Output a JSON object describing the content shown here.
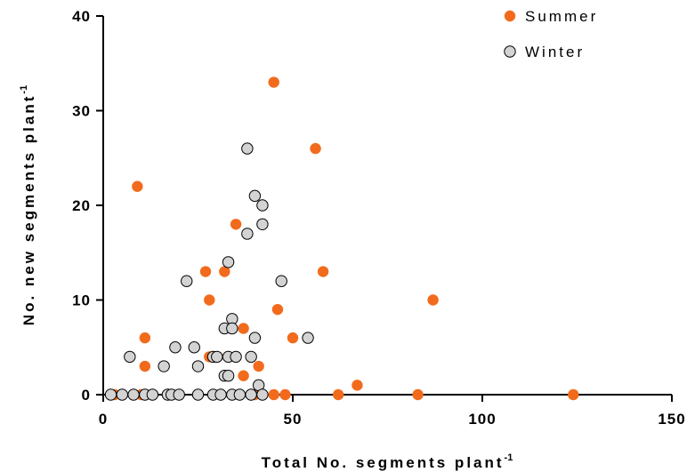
{
  "chart_data": {
    "type": "scatter",
    "xlabel": "Total No. segments plant",
    "xlabel_sup": "-1",
    "ylabel": "No. new segments plant",
    "ylabel_sup": "-1",
    "xlim": [
      0,
      150
    ],
    "ylim": [
      0,
      40
    ],
    "xticks": [
      "0",
      "50",
      "100",
      "150"
    ],
    "yticks": [
      "0",
      "10",
      "20",
      "30",
      "40"
    ],
    "grid": false,
    "legend_position": "top-right",
    "series": [
      {
        "name": "Summer",
        "color": "#f26b1d",
        "points": [
          [
            3,
            0
          ],
          [
            9,
            22
          ],
          [
            7,
            4
          ],
          [
            11,
            3
          ],
          [
            11,
            6
          ],
          [
            10,
            0
          ],
          [
            20,
            0
          ],
          [
            27,
            13
          ],
          [
            28,
            10
          ],
          [
            28,
            4
          ],
          [
            32,
            13
          ],
          [
            35,
            18
          ],
          [
            37,
            7
          ],
          [
            37,
            2
          ],
          [
            40,
            0
          ],
          [
            41,
            3
          ],
          [
            45,
            33
          ],
          [
            45,
            0
          ],
          [
            46,
            9
          ],
          [
            48,
            0
          ],
          [
            50,
            6
          ],
          [
            56,
            26
          ],
          [
            58,
            13
          ],
          [
            62,
            0
          ],
          [
            67,
            1
          ],
          [
            83,
            0
          ],
          [
            87,
            10
          ],
          [
            124,
            0
          ]
        ]
      },
      {
        "name": "Winter",
        "color": "#d3d3d3",
        "points": [
          [
            2,
            0
          ],
          [
            5,
            0
          ],
          [
            7,
            4
          ],
          [
            8,
            0
          ],
          [
            11,
            0
          ],
          [
            13,
            0
          ],
          [
            16,
            3
          ],
          [
            17,
            0
          ],
          [
            18,
            0
          ],
          [
            19,
            5
          ],
          [
            20,
            0
          ],
          [
            22,
            12
          ],
          [
            24,
            5
          ],
          [
            25,
            3
          ],
          [
            25,
            0
          ],
          [
            29,
            0
          ],
          [
            29,
            4
          ],
          [
            30,
            4
          ],
          [
            31,
            0
          ],
          [
            32,
            2
          ],
          [
            32,
            7
          ],
          [
            33,
            14
          ],
          [
            33,
            4
          ],
          [
            33,
            2
          ],
          [
            34,
            8
          ],
          [
            34,
            7
          ],
          [
            34,
            0
          ],
          [
            35,
            4
          ],
          [
            36,
            0
          ],
          [
            38,
            26
          ],
          [
            38,
            17
          ],
          [
            39,
            4
          ],
          [
            39,
            0
          ],
          [
            40,
            21
          ],
          [
            40,
            6
          ],
          [
            41,
            1
          ],
          [
            42,
            20
          ],
          [
            42,
            18
          ],
          [
            42,
            0
          ],
          [
            47,
            12
          ],
          [
            54,
            6
          ]
        ]
      }
    ]
  }
}
